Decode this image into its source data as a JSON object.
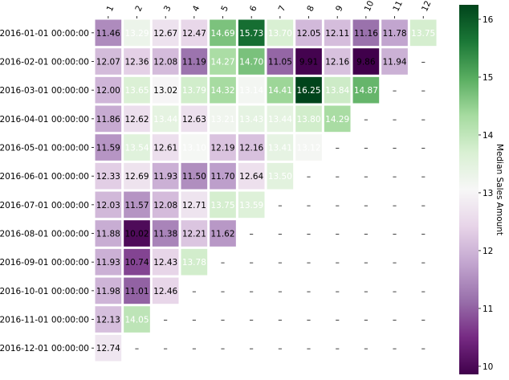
{
  "chart_data": {
    "type": "heatmap",
    "title": "",
    "xlabel": "",
    "ylabel": "",
    "x_categories": [
      "1",
      "2",
      "3",
      "4",
      "5",
      "6",
      "7",
      "8",
      "9",
      "10",
      "11",
      "12"
    ],
    "y_categories": [
      "2016-01-01 00:00:00",
      "2016-02-01 00:00:00",
      "2016-03-01 00:00:00",
      "2016-04-01 00:00:00",
      "2016-05-01 00:00:00",
      "2016-06-01 00:00:00",
      "2016-07-01 00:00:00",
      "2016-08-01 00:00:00",
      "2016-09-01 00:00:00",
      "2016-10-01 00:00:00",
      "2016-11-01 00:00:00",
      "2016-12-01 00:00:00"
    ],
    "values": [
      [
        11.46,
        13.29,
        12.67,
        12.47,
        14.69,
        15.73,
        13.7,
        12.05,
        12.11,
        11.16,
        11.78,
        13.75
      ],
      [
        12.07,
        12.36,
        12.08,
        11.19,
        14.27,
        14.7,
        11.05,
        9.91,
        12.16,
        9.86,
        11.94,
        null
      ],
      [
        12.0,
        13.65,
        13.02,
        13.79,
        14.32,
        13.14,
        14.41,
        16.25,
        13.84,
        14.87,
        null,
        null
      ],
      [
        11.86,
        12.62,
        13.44,
        12.63,
        13.21,
        13.43,
        13.44,
        13.8,
        14.29,
        null,
        null,
        null
      ],
      [
        11.59,
        13.54,
        12.61,
        13.1,
        12.19,
        12.16,
        13.41,
        13.12,
        null,
        null,
        null,
        null
      ],
      [
        12.33,
        12.69,
        11.93,
        11.5,
        11.7,
        12.64,
        13.5,
        null,
        null,
        null,
        null,
        null
      ],
      [
        12.03,
        11.57,
        12.08,
        12.71,
        13.75,
        13.59,
        null,
        null,
        null,
        null,
        null,
        null
      ],
      [
        11.88,
        10.02,
        11.38,
        12.21,
        11.62,
        null,
        null,
        null,
        null,
        null,
        null,
        null
      ],
      [
        11.93,
        10.74,
        12.43,
        13.78,
        null,
        null,
        null,
        null,
        null,
        null,
        null,
        null
      ],
      [
        11.98,
        11.01,
        12.46,
        null,
        null,
        null,
        null,
        null,
        null,
        null,
        null,
        null
      ],
      [
        12.13,
        14.05,
        null,
        null,
        null,
        null,
        null,
        null,
        null,
        null,
        null,
        null
      ],
      [
        12.74,
        null,
        null,
        null,
        null,
        null,
        null,
        null,
        null,
        null,
        null,
        null
      ]
    ],
    "missing_label": "–",
    "colormap": "PRGn",
    "colormap_stops": [
      "#40004b",
      "#762a83",
      "#9970ab",
      "#c2a5cf",
      "#e7d4e8",
      "#f7f7f7",
      "#d9f0d3",
      "#a6dba0",
      "#5aae61",
      "#1b7837",
      "#00441b"
    ],
    "vmin": 9.86,
    "vmax": 16.25,
    "colorbar": {
      "label": "Median Sales Amount",
      "ticks": [
        10,
        11,
        12,
        13,
        14,
        15,
        16
      ]
    }
  }
}
